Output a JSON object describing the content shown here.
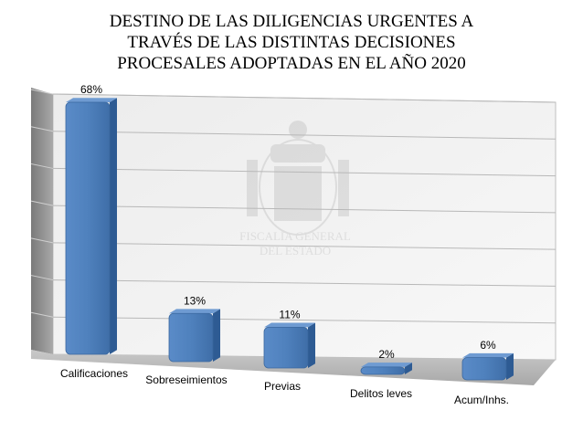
{
  "chart_data": {
    "type": "bar",
    "title_lines": [
      "DESTINO DE LAS DILIGENCIAS URGENTES A",
      "TRAVÉS DE LAS DISTINTAS DECISIONES",
      "PROCESALES ADOPTADAS EN EL AÑO 2020"
    ],
    "categories": [
      "Calificaciones",
      "Sobreseimientos",
      "Previas",
      "Delitos leves",
      "Acum/Inhs."
    ],
    "values": [
      68,
      13,
      11,
      2,
      6
    ],
    "data_labels": [
      "68%",
      "13%",
      "11%",
      "2%",
      "6%"
    ],
    "ylim": [
      0,
      70
    ],
    "grid": true,
    "legend": "none",
    "style": "3d-perspective",
    "bar_color": "#4f81bd",
    "bar_side_color": "#2e5b93",
    "watermark": "FISCALÍA GENERAL DEL ESTADO"
  }
}
